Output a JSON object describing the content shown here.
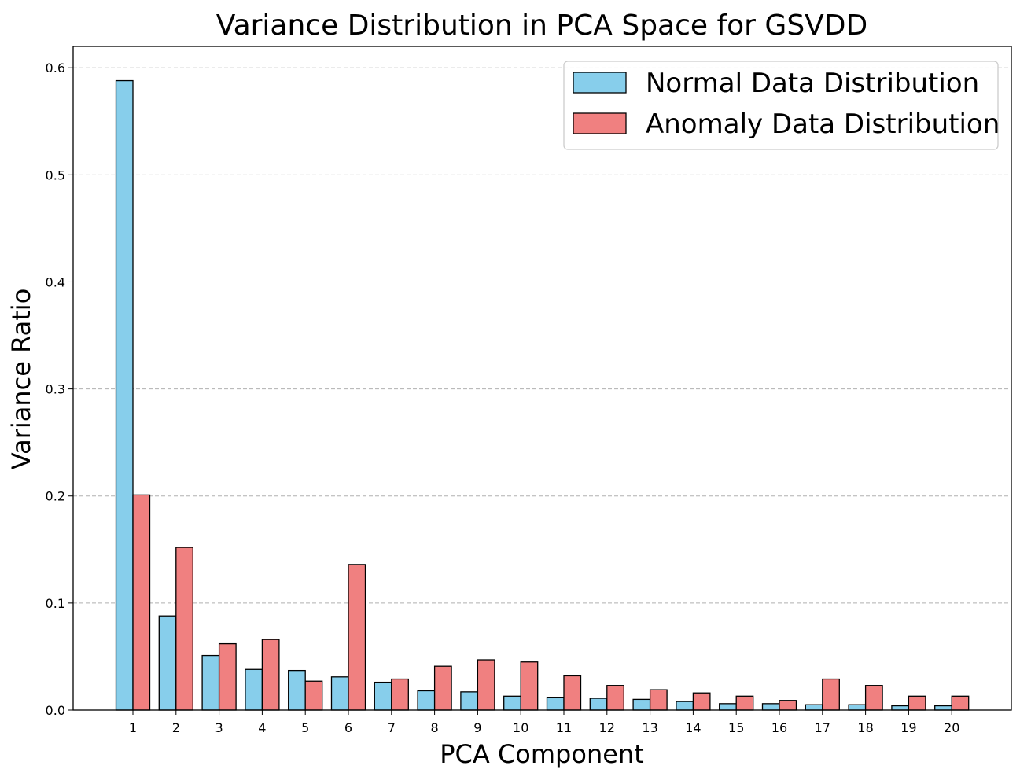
{
  "chart_data": {
    "type": "bar",
    "title": "Variance Distribution in PCA Space for GSVDD",
    "xlabel": "PCA Component",
    "ylabel": "Variance Ratio",
    "categories": [
      "1",
      "2",
      "3",
      "4",
      "5",
      "6",
      "7",
      "8",
      "9",
      "10",
      "11",
      "12",
      "13",
      "14",
      "15",
      "16",
      "17",
      "18",
      "19",
      "20"
    ],
    "series": [
      {
        "name": "Normal Data Distribution",
        "color": "#87ceeb",
        "values": [
          0.588,
          0.088,
          0.051,
          0.038,
          0.037,
          0.031,
          0.026,
          0.018,
          0.017,
          0.013,
          0.012,
          0.011,
          0.01,
          0.008,
          0.006,
          0.006,
          0.005,
          0.005,
          0.004,
          0.004
        ]
      },
      {
        "name": "Anomaly Data Distribution",
        "color": "#f08080",
        "values": [
          0.201,
          0.152,
          0.062,
          0.066,
          0.027,
          0.136,
          0.029,
          0.041,
          0.047,
          0.045,
          0.032,
          0.023,
          0.019,
          0.016,
          0.013,
          0.009,
          0.029,
          0.023,
          0.013,
          0.013
        ]
      }
    ],
    "ylim": [
      0.0,
      0.62
    ],
    "yticks": [
      0.0,
      0.1,
      0.2,
      0.3,
      0.4,
      0.5,
      0.6
    ],
    "ytick_labels": [
      "0.0",
      "0.1",
      "0.2",
      "0.3",
      "0.4",
      "0.5",
      "0.6"
    ],
    "grid": "y-dashed",
    "legend_location": "top-right"
  }
}
